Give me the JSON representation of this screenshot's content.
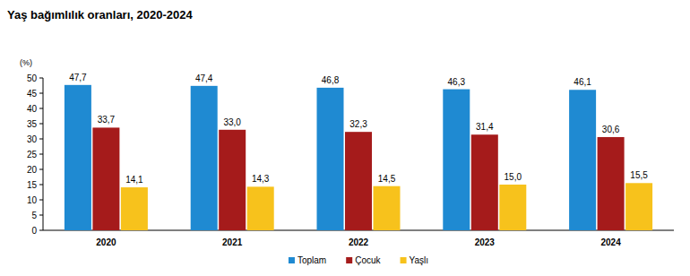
{
  "chart_data": {
    "type": "bar",
    "title": "Yaş bağımlılık oranları, 2020-2024",
    "y_label": "(%)",
    "categories": [
      "2020",
      "2021",
      "2022",
      "2023",
      "2024"
    ],
    "series": [
      {
        "name": "Toplam",
        "color": "#1f8ad2",
        "values": [
          47.7,
          47.4,
          46.8,
          46.3,
          46.1
        ],
        "value_labels": [
          "47,7",
          "47,4",
          "46,8",
          "46,3",
          "46,1"
        ]
      },
      {
        "name": "Çocuk",
        "color": "#a51b1b",
        "values": [
          33.7,
          33.0,
          32.3,
          31.4,
          30.6
        ],
        "value_labels": [
          "33,7",
          "33,0",
          "32,3",
          "31,4",
          "30,6"
        ]
      },
      {
        "name": "Yaşlı",
        "color": "#f7c21c",
        "values": [
          14.1,
          14.3,
          14.5,
          15.0,
          15.5
        ],
        "value_labels": [
          "14,1",
          "14,3",
          "14,5",
          "15,0",
          "15,5"
        ]
      }
    ],
    "ylim": [
      0,
      50
    ],
    "yticks": [
      0,
      5,
      10,
      15,
      20,
      25,
      30,
      35,
      40,
      45,
      50
    ],
    "grid": false,
    "data_labels": true,
    "legend": "bottom"
  }
}
